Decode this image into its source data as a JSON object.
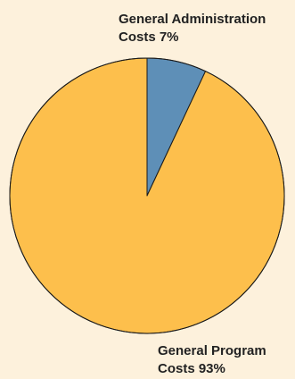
{
  "chart_data": {
    "type": "pie",
    "title": "",
    "slices": [
      {
        "label_line1": "General Administration",
        "label_line2": "Costs 7%",
        "value": 7,
        "color": "#5e8fb7"
      },
      {
        "label_line1": "General Program",
        "label_line2": "Costs 93%",
        "value": 93,
        "color": "#fdbf4c"
      }
    ],
    "start": "12 o'clock",
    "direction": "clockwise",
    "outline_color": "#1a1a1a",
    "background": "#fdf1dc"
  }
}
